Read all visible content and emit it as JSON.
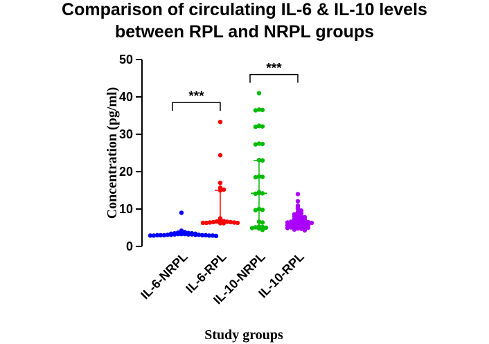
{
  "chart_data": {
    "type": "scatter",
    "title": [
      "Comparison of circulating IL-6 & IL-10 levels",
      "between RPL and NRPL groups"
    ],
    "xlabel": "Study groups",
    "ylabel": "Concentration (pg/ml)",
    "ylim": [
      0,
      50
    ],
    "yticks": [
      "0",
      "10",
      "20",
      "30",
      "40",
      "50"
    ],
    "grid": false,
    "legend": "none",
    "categories": [
      "IL-6-NRPL",
      "IL-6-RPL",
      "IL-10-NRPL",
      "IL-10-RPL"
    ],
    "series": [
      {
        "category": "IL-6-NRPL",
        "color": "#0000ff",
        "values": [
          9.0,
          4.2,
          4.0,
          3.8,
          3.7,
          3.6,
          3.5,
          3.5,
          3.4,
          3.4,
          3.3,
          3.3,
          3.3,
          3.2,
          3.2,
          3.2,
          3.1,
          3.1,
          3.1,
          3.1,
          3.0,
          3.0,
          3.0,
          3.0,
          3.0,
          2.9,
          2.9,
          2.9,
          2.9,
          2.8
        ],
        "median": 3.2,
        "q1": 3.0,
        "q3": 3.6
      },
      {
        "category": "IL-6-RPL",
        "color": "#ff0000",
        "values": [
          33.3,
          24.4,
          17.0,
          15.7,
          15.2,
          15.0,
          7.5,
          7.0,
          6.8,
          6.7,
          6.6,
          6.5,
          6.5,
          6.4,
          6.4,
          6.3,
          6.3,
          6.3,
          6.2,
          6.2
        ],
        "median": 6.6,
        "q1": 6.3,
        "q3": 15.0
      },
      {
        "category": "IL-10-NRPL",
        "color": "#00bb00",
        "values": [
          41.0,
          36.6,
          36.5,
          36.4,
          32.3,
          32.2,
          32.1,
          32.0,
          27.5,
          27.4,
          27.3,
          23.1,
          23.0,
          18.7,
          18.6,
          18.5,
          14.5,
          14.3,
          14.2,
          14.1,
          10.0,
          9.8,
          9.7,
          6.6,
          6.4,
          5.3,
          5.2,
          5.1,
          5.0,
          4.9,
          4.8,
          4.4
        ],
        "median": 14.2,
        "q1": 5.3,
        "q3": 23.0
      },
      {
        "category": "IL-10-RPL",
        "color": "#aa00ff",
        "values": [
          14.0,
          12.1,
          10.9,
          10.4,
          10.0,
          9.6,
          9.2,
          8.9,
          8.6,
          8.4,
          8.2,
          8.0,
          7.8,
          7.6,
          7.5,
          7.3,
          7.2,
          7.0,
          6.9,
          6.8,
          6.7,
          6.6,
          6.5,
          6.4,
          6.3,
          6.2,
          6.1,
          6.0,
          5.9,
          5.8,
          5.7,
          5.6,
          5.5,
          5.4,
          5.3,
          5.2,
          5.1,
          5.0,
          4.9,
          4.8,
          4.7,
          4.5,
          4.3
        ],
        "median": 6.6,
        "q1": 5.8,
        "q3": 7.1
      }
    ],
    "annotations": [
      {
        "label": "***",
        "from": "IL-6-NRPL",
        "to": "IL-6-RPL",
        "y": 38.5
      },
      {
        "label": "***",
        "from": "IL-10-NRPL",
        "to": "IL-10-RPL",
        "y": 46.0
      }
    ]
  }
}
